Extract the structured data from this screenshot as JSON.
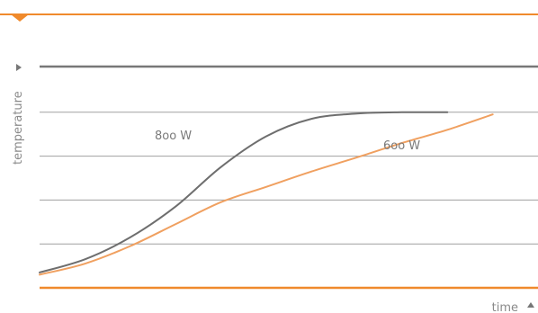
{
  "chart_data": {
    "type": "line",
    "title": "",
    "xlabel": "time",
    "ylabel": "temperature",
    "grid": true,
    "legend": "inline",
    "ylim": [
      0,
      5
    ],
    "xlim": [
      0,
      11
    ],
    "series": [
      {
        "name": "800 W",
        "color": "#6e6e6e",
        "x": [
          0,
          1,
          2,
          3,
          4,
          5,
          6,
          7,
          8,
          9
        ],
        "y": [
          0.35,
          0.65,
          1.15,
          1.85,
          2.75,
          3.45,
          3.85,
          3.97,
          4.0,
          4.0
        ]
      },
      {
        "name": "600 W",
        "color": "#f0a060",
        "x": [
          0,
          1,
          2,
          3,
          4,
          5,
          6,
          7,
          8,
          9,
          10
        ],
        "y": [
          0.3,
          0.55,
          0.95,
          1.45,
          1.95,
          2.3,
          2.65,
          2.97,
          3.3,
          3.6,
          3.95
        ]
      }
    ],
    "series_labels": {
      "800 W": "8oo W",
      "600 W": "6oo W"
    },
    "colors": {
      "frame": "#f08a2c",
      "axis": "#777777",
      "grid": "#a0a0a0",
      "text": "#8a8a8a"
    }
  }
}
